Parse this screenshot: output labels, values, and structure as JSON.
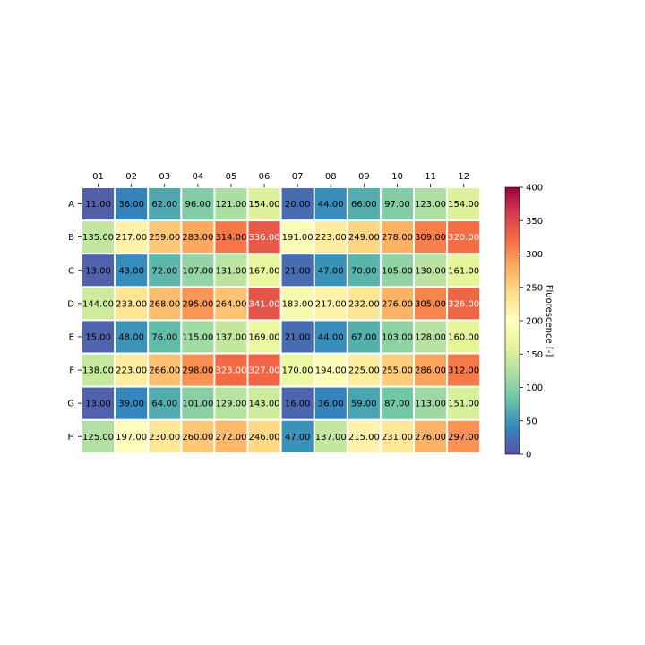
{
  "chart_data": {
    "type": "heatmap",
    "columns": [
      "01",
      "02",
      "03",
      "04",
      "05",
      "06",
      "07",
      "08",
      "09",
      "10",
      "11",
      "12"
    ],
    "rows": [
      "A",
      "B",
      "C",
      "D",
      "E",
      "F",
      "G",
      "H"
    ],
    "values": [
      [
        11,
        36,
        62,
        96,
        121,
        154,
        20,
        44,
        66,
        97,
        123,
        154
      ],
      [
        135,
        217,
        259,
        283,
        314,
        336,
        191,
        223,
        249,
        278,
        309,
        320
      ],
      [
        13,
        43,
        72,
        107,
        131,
        167,
        21,
        47,
        70,
        105,
        130,
        161
      ],
      [
        144,
        233,
        268,
        295,
        264,
        341,
        183,
        217,
        232,
        276,
        305,
        326
      ],
      [
        15,
        48,
        76,
        115,
        137,
        169,
        21,
        44,
        67,
        103,
        128,
        160
      ],
      [
        138,
        223,
        266,
        298,
        323,
        327,
        170,
        194,
        225,
        255,
        286,
        312
      ],
      [
        13,
        39,
        64,
        101,
        129,
        143,
        16,
        36,
        59,
        87,
        113,
        151
      ],
      [
        125,
        197,
        230,
        260,
        272,
        246,
        47,
        137,
        215,
        231,
        276,
        297
      ]
    ],
    "value_format_decimals": 2,
    "colormap": "Spectral_r",
    "vmin": 0,
    "vmax": 400,
    "colorbar": {
      "label": "Fluorescence [-]",
      "ticks": [
        "0",
        "50",
        "100",
        "150",
        "200",
        "250",
        "300",
        "350",
        "400"
      ]
    },
    "x_ticks_position": "top",
    "legend": "colorbar-right"
  }
}
